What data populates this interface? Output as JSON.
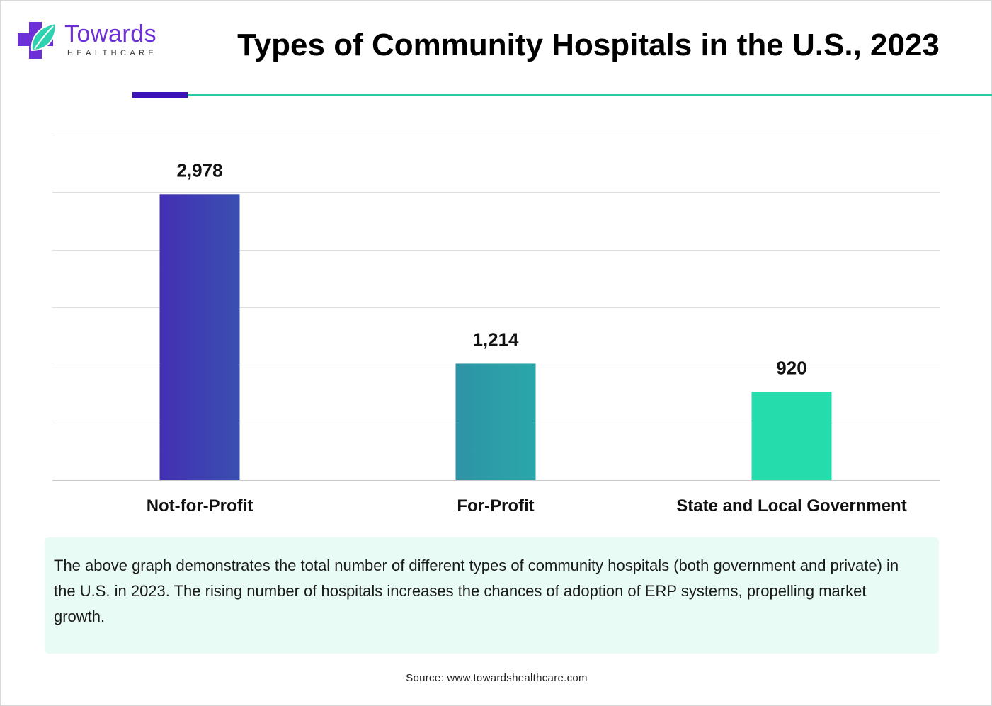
{
  "brand": {
    "name": "Towards",
    "tagline": "HEALTHCARE",
    "logo_icon": "medical-cross-leaf-icon",
    "colors": {
      "purple": "#6d2fd6",
      "teal": "#2ec8a5"
    }
  },
  "title": "Types of Community Hospitals in the U.S., 2023",
  "chart_data": {
    "type": "bar",
    "title": "Types of Community Hospitals in the U.S., 2023",
    "categories": [
      "Not-for-Profit",
      "For-Profit",
      "State and Local Government"
    ],
    "values": [
      2978,
      1214,
      920
    ],
    "value_labels": [
      "2,978",
      "1,214",
      "920"
    ],
    "colors": [
      [
        "#4330b3",
        "#3a4fb0"
      ],
      [
        "#2e93a6",
        "#2aa7a9"
      ],
      [
        "#24dcac",
        "#24dcac"
      ]
    ],
    "ylim": [
      0,
      3600
    ],
    "gridlines": [
      0,
      600,
      1200,
      1800,
      2400,
      3000,
      3600
    ],
    "grid": true,
    "show_y_axis": false,
    "xlabel": "",
    "ylabel": ""
  },
  "description": "The above graph demonstrates the total number of different types of community hospitals (both government and private) in the U.S. in 2023. The rising number of hospitals increases the chances of adoption of ERP systems, propelling market growth.",
  "source": "Source: www.towardshealthcare.com"
}
